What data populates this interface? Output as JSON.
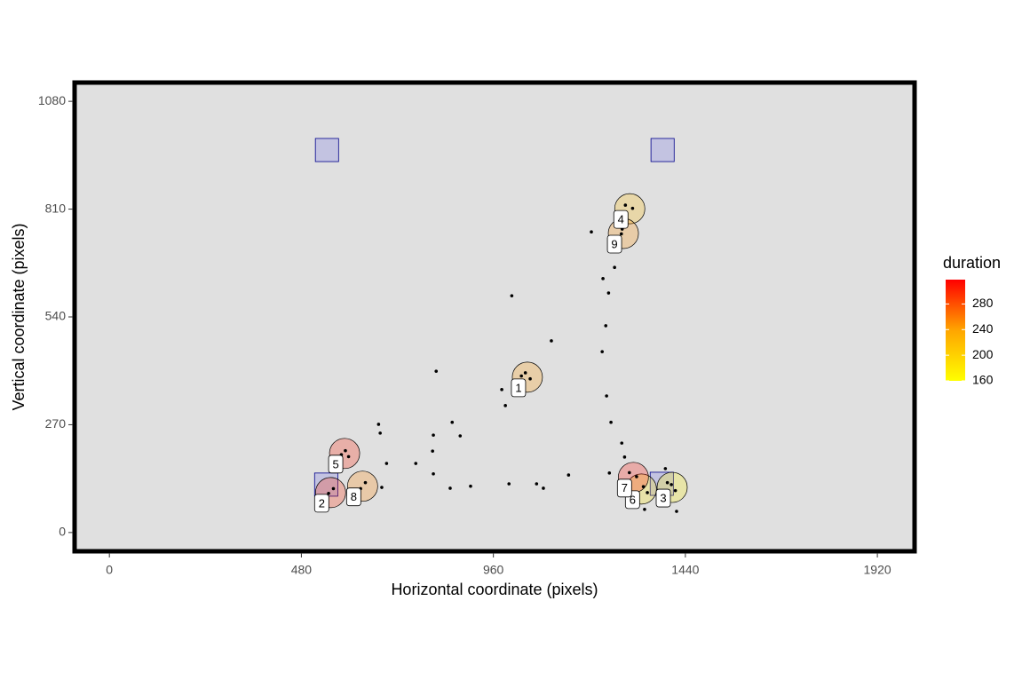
{
  "chart_data": {
    "type": "scatter",
    "x_label": "Horizontal coordinate (pixels)",
    "y_label": "Vertical coordinate (pixels)",
    "xlim": [
      -87,
      2013
    ],
    "ylim": [
      -47,
      1127
    ],
    "xticks": [
      0,
      480,
      960,
      1440,
      1920
    ],
    "yticks": [
      0,
      270,
      540,
      810,
      1080
    ],
    "background": "#e0e0e0",
    "legend": {
      "title": "duration",
      "ticks": [
        160,
        200,
        240,
        280
      ],
      "lim": [
        160,
        318
      ],
      "colors": [
        "#ffff00",
        "#ffa500",
        "#ff0000"
      ]
    },
    "aois": [
      {
        "x": 544,
        "y": 958,
        "width": 58,
        "height": 58
      },
      {
        "x": 1383,
        "y": 958,
        "width": 58,
        "height": 58
      },
      {
        "x": 542,
        "y": 120,
        "width": 58,
        "height": 58
      },
      {
        "x": 1381,
        "y": 122,
        "width": 58,
        "height": 58
      }
    ],
    "gaze": {
      "x": [
        1006,
        1105,
        1205,
        817,
        1234,
        1248,
        1263,
        1241,
        1232,
        1243,
        1254,
        1281,
        1288,
        673,
        677,
        693,
        766,
        810,
        808,
        810,
        857,
        877,
        852,
        903,
        981,
        990,
        999,
        1068,
        1085,
        1148,
        1250,
        1338,
        1418,
        1390,
        681,
        1040,
        1052,
        1030,
        590,
        580,
        598,
        560,
        548,
        640,
        628,
        1300,
        1318,
        1297,
        1335,
        1345,
        1405,
        1415,
        1395,
        1320,
        1290,
        1308,
        1282,
        1280
      ],
      "y": [
        593,
        480,
        753,
        404,
        636,
        600,
        664,
        518,
        453,
        342,
        276,
        224,
        189,
        271,
        249,
        173,
        173,
        244,
        204,
        147,
        276,
        242,
        111,
        116,
        358,
        318,
        122,
        122,
        111,
        144,
        149,
        58,
        53,
        160,
        113,
        400,
        385,
        392,
        205,
        195,
        190,
        110,
        98,
        125,
        110,
        150,
        140,
        130,
        115,
        100,
        120,
        105,
        125,
        95,
        820,
        812,
        760,
        748
      ]
    },
    "fixations": {
      "labels": [
        "1",
        "2",
        "3",
        "4",
        "5",
        "6",
        "7",
        "8",
        "9"
      ],
      "x": [
        1045,
        553,
        1407,
        1301,
        588,
        1330,
        1310,
        633,
        1285
      ],
      "y": [
        389,
        100,
        113,
        811,
        198,
        109,
        138,
        116,
        749
      ],
      "duration": [
        245,
        300,
        170,
        220,
        305,
        180,
        312,
        255,
        250
      ]
    }
  }
}
